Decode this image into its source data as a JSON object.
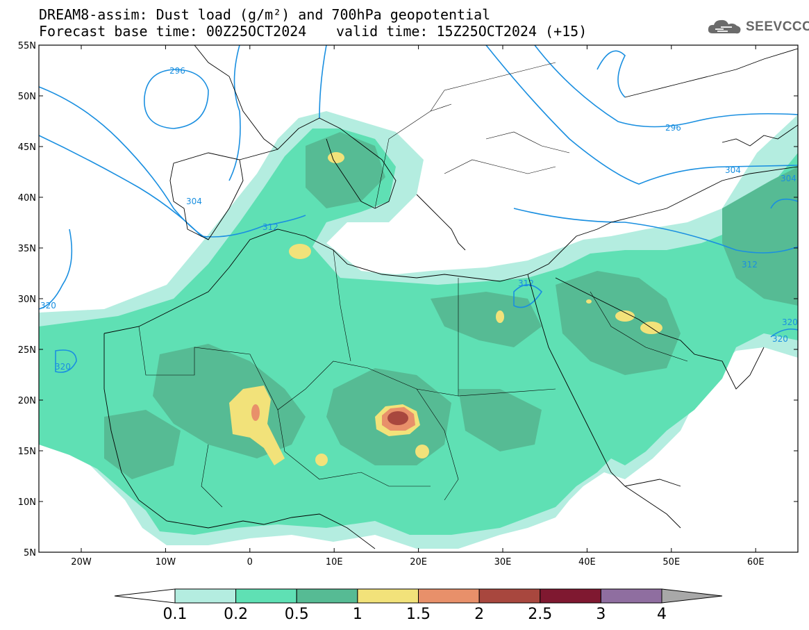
{
  "header": {
    "title_line_1": "DREAM8-assim: Dust load (g/m²) and 700hPa geopotential",
    "title_line_2": "Forecast base time: 00Z25OCT2024",
    "valid_time": "valid time: 15Z25OCT2024 (+15)",
    "brand": "SEEVCCC",
    "brand_icon": "cloud-logo-icon"
  },
  "map": {
    "lat_labels": [
      "55N",
      "50N",
      "45N",
      "40N",
      "35N",
      "30N",
      "25N",
      "20N",
      "15N",
      "10N",
      "5N"
    ],
    "lon_labels": [
      "20W",
      "10W",
      "0",
      "10E",
      "20E",
      "30E",
      "40E",
      "50E",
      "60E"
    ],
    "contour_labels": [
      "296",
      "296",
      "304",
      "304",
      "304",
      "312",
      "312",
      "312",
      "320",
      "320",
      "320",
      "320"
    ],
    "contour_color": "#1a8fe0"
  },
  "colorbar": {
    "labels": [
      "0.1",
      "0.2",
      "0.5",
      "1",
      "1.5",
      "2",
      "2.5",
      "3",
      "4"
    ],
    "colors": [
      "#b4ede0",
      "#5fe0b4",
      "#56bb94",
      "#f2e27a",
      "#e8906a",
      "#a8473e",
      "#7f1830",
      "#8f6ea0"
    ],
    "end_colors": {
      "low": "#ffffff",
      "high": "#a8a8a8"
    }
  }
}
